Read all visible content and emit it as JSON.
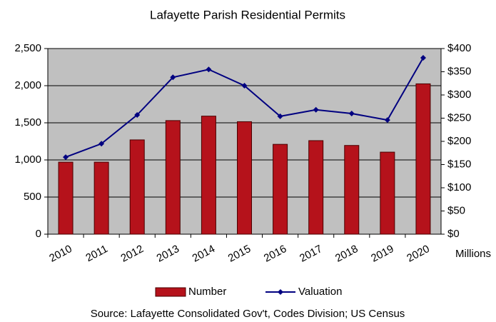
{
  "chart_data": {
    "type": "bar_line",
    "title": "Lafayette Parish Residential Permits",
    "source": "Source:  Lafayette Consolidated Gov't, Codes Division; US Census",
    "y2_unit": "Millions",
    "categories": [
      "2010",
      "2011",
      "2012",
      "2013",
      "2014",
      "2015",
      "2016",
      "2017",
      "2018",
      "2019",
      "2020"
    ],
    "series": [
      {
        "name": "Number",
        "type": "bar",
        "color": "#b5121b",
        "values": [
          970,
          970,
          1270,
          1530,
          1590,
          1515,
          1210,
          1260,
          1195,
          1105,
          2025
        ]
      },
      {
        "name": "Valuation",
        "type": "line",
        "axis": "y2",
        "color": "#000080",
        "values": [
          166,
          195,
          257,
          338,
          355,
          320,
          254,
          268,
          260,
          246,
          380
        ]
      }
    ],
    "ylim": [
      0,
      2500
    ],
    "yticks": [
      0,
      500,
      {
        "value": 1000,
        "label": "1,000"
      },
      {
        "value": 1500,
        "label": "1,500"
      },
      {
        "value": 2000,
        "label": "2,000"
      },
      {
        "value": 2500,
        "label": "2,500"
      }
    ],
    "y2lim": [
      0,
      400
    ],
    "y2ticks": [
      {
        "value": 0,
        "label": "$0"
      },
      {
        "value": 50,
        "label": "$50"
      },
      {
        "value": 100,
        "label": "$100"
      },
      {
        "value": 150,
        "label": "$150"
      },
      {
        "value": 200,
        "label": "$200"
      },
      {
        "value": 250,
        "label": "$250"
      },
      {
        "value": 300,
        "label": "$300"
      },
      {
        "value": 350,
        "label": "$350"
      },
      {
        "value": 400,
        "label": "$400"
      }
    ],
    "grid": true
  }
}
